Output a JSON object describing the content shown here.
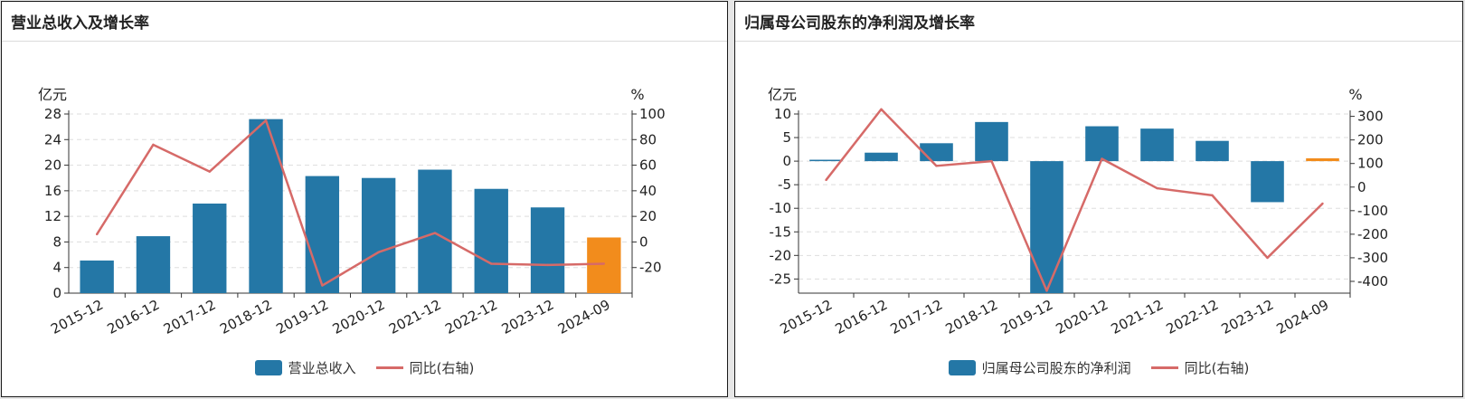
{
  "colors": {
    "bar": "#2477a6",
    "bar_highlight": "#f28c1c",
    "line": "#d66a68",
    "grid": "#dddddd",
    "axis": "#333333"
  },
  "chart_data": [
    {
      "type": "bar",
      "title": "营业总收入及增长率",
      "categories": [
        "2015-12",
        "2016-12",
        "2017-12",
        "2018-12",
        "2019-12",
        "2020-12",
        "2021-12",
        "2022-12",
        "2023-12",
        "2024-09"
      ],
      "y_left": {
        "unit": "亿元",
        "ticks": [
          0,
          4,
          8,
          12,
          16,
          20,
          24,
          28
        ],
        "range": [
          0,
          28
        ]
      },
      "y_right": {
        "unit": "%",
        "ticks": [
          -20,
          0,
          20,
          40,
          60,
          80,
          100
        ],
        "range": [
          -40,
          100
        ]
      },
      "series": [
        {
          "name": "营业总收入",
          "type": "bar",
          "axis": "left",
          "values": [
            5.1,
            8.9,
            14.0,
            27.2,
            18.3,
            18.0,
            19.3,
            16.3,
            13.4,
            8.7
          ]
        },
        {
          "name": "同比(右轴)",
          "type": "line",
          "axis": "right",
          "values": [
            6,
            76,
            55,
            95,
            -34,
            -8,
            7,
            -17,
            -18,
            -17
          ]
        }
      ],
      "highlight_index": 9,
      "grid": true,
      "legend_position": "bottom"
    },
    {
      "type": "bar",
      "title": "归属母公司股东的净利润及增长率",
      "categories": [
        "2015-12",
        "2016-12",
        "2017-12",
        "2018-12",
        "2019-12",
        "2020-12",
        "2021-12",
        "2022-12",
        "2023-12",
        "2024-09"
      ],
      "y_left": {
        "unit": "亿元",
        "ticks": [
          10,
          5,
          0,
          -5,
          -10,
          -15,
          -20,
          -25
        ],
        "range": [
          -28,
          10
        ]
      },
      "y_right": {
        "unit": "%",
        "ticks": [
          300,
          200,
          100,
          0,
          -100,
          -200,
          -300,
          -400
        ],
        "range": [
          -450,
          310
        ]
      },
      "series": [
        {
          "name": "归属母公司股东的净利润",
          "type": "bar",
          "axis": "left",
          "values": [
            0.3,
            1.8,
            3.8,
            8.3,
            -28.0,
            7.4,
            6.9,
            4.3,
            -8.7,
            0.6
          ]
        },
        {
          "name": "同比(右轴)",
          "type": "line",
          "axis": "right",
          "values": [
            30,
            330,
            90,
            110,
            -440,
            120,
            -5,
            -35,
            -300,
            -70
          ]
        }
      ],
      "highlight_index": 9,
      "grid": true,
      "legend_position": "bottom"
    }
  ]
}
